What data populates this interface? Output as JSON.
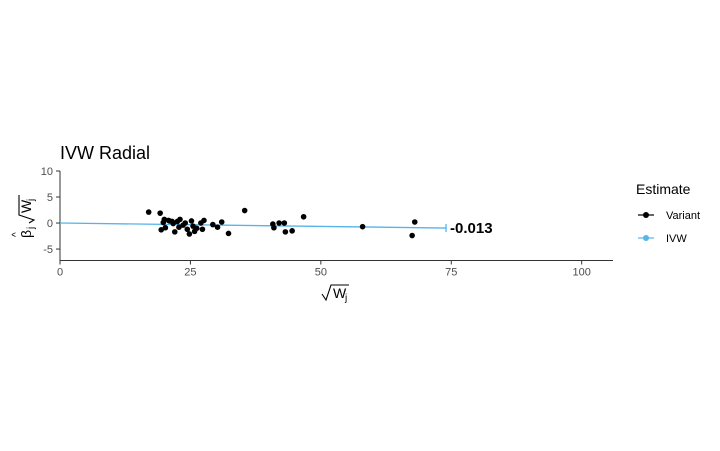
{
  "chart_data": {
    "type": "scatter",
    "title": "IVW Radial",
    "xlabel": "√W_j",
    "ylabel": "β̂_j √W_j",
    "xlim": [
      0,
      106
    ],
    "ylim": [
      -7.2,
      10
    ],
    "x_ticks": [
      0,
      25,
      50,
      75,
      100
    ],
    "y_ticks": [
      -5,
      0,
      5,
      10
    ],
    "grid": false,
    "legend_position": "right",
    "legend": {
      "title": "Estimate",
      "entries": [
        {
          "label": "Variant",
          "color": "#000000"
        },
        {
          "label": "IVW",
          "color": "#56B4E9"
        }
      ]
    },
    "series": [
      {
        "name": "Variant",
        "color": "#000000",
        "points": [
          [
            17.0,
            2.1
          ],
          [
            19.2,
            1.9
          ],
          [
            19.4,
            -1.3
          ],
          [
            19.8,
            0.1
          ],
          [
            20.0,
            0.7
          ],
          [
            20.2,
            -0.9
          ],
          [
            20.8,
            0.5
          ],
          [
            21.0,
            0.4
          ],
          [
            21.5,
            0.3
          ],
          [
            21.7,
            -0.1
          ],
          [
            22.0,
            -1.7
          ],
          [
            22.5,
            0.3
          ],
          [
            22.8,
            -0.8
          ],
          [
            23.0,
            0.7
          ],
          [
            23.6,
            -0.4
          ],
          [
            24.0,
            0.0
          ],
          [
            24.4,
            -1.2
          ],
          [
            24.8,
            -2.1
          ],
          [
            25.2,
            0.4
          ],
          [
            25.5,
            -0.6
          ],
          [
            25.8,
            -1.6
          ],
          [
            26.2,
            -1.0
          ],
          [
            27.0,
            0.0
          ],
          [
            27.3,
            -1.2
          ],
          [
            27.6,
            0.5
          ],
          [
            29.3,
            -0.3
          ],
          [
            30.2,
            -0.8
          ],
          [
            31.0,
            0.2
          ],
          [
            32.3,
            -2.0
          ],
          [
            35.4,
            2.4
          ],
          [
            40.8,
            -0.2
          ],
          [
            41.0,
            -0.9
          ],
          [
            42.0,
            0.0
          ],
          [
            43.0,
            0.0
          ],
          [
            43.2,
            -1.7
          ],
          [
            44.5,
            -1.5
          ],
          [
            46.7,
            1.2
          ],
          [
            58.0,
            -0.7
          ],
          [
            67.5,
            -2.4
          ],
          [
            68.0,
            0.2
          ]
        ]
      },
      {
        "name": "IVW",
        "color": "#56B4E9",
        "line": [
          [
            0,
            0
          ],
          [
            74,
            -0.962
          ]
        ]
      }
    ],
    "annotations": [
      {
        "text": "-0.013"
      }
    ]
  }
}
